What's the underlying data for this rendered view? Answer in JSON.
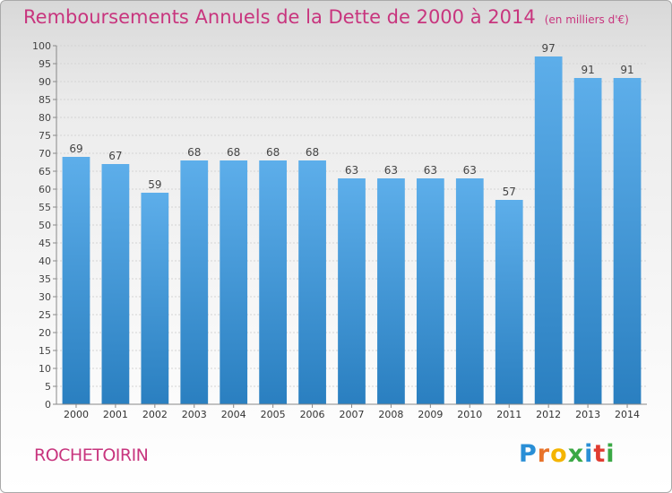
{
  "title": "Remboursements Annuels de la Dette de 2000 à 2014",
  "unit": "(en milliers d'€)",
  "commune": "ROCHETOIRIN",
  "logo": {
    "letters": [
      "P",
      "r",
      "o",
      "x",
      "i",
      "t",
      "i"
    ],
    "colors": [
      "#2a8fd6",
      "#e8732a",
      "#f4b400",
      "#3aa845",
      "#2a8fd6",
      "#e03c31",
      "#3aa845"
    ]
  },
  "chart_data": {
    "type": "bar",
    "categories": [
      "2000",
      "2001",
      "2002",
      "2003",
      "2004",
      "2005",
      "2006",
      "2007",
      "2008",
      "2009",
      "2010",
      "2011",
      "2012",
      "2013",
      "2014"
    ],
    "values": [
      69,
      67,
      59,
      68,
      68,
      68,
      68,
      63,
      63,
      63,
      63,
      57,
      97,
      91,
      91
    ],
    "title": "Remboursements Annuels de la Dette de 2000 à 2014",
    "ylim": [
      0,
      100
    ],
    "yticks": [
      0,
      5,
      10,
      15,
      20,
      25,
      30,
      35,
      40,
      45,
      50,
      55,
      60,
      65,
      70,
      75,
      80,
      85,
      90,
      95,
      100
    ],
    "grid": true,
    "bar_color": "#3f9ee0"
  }
}
